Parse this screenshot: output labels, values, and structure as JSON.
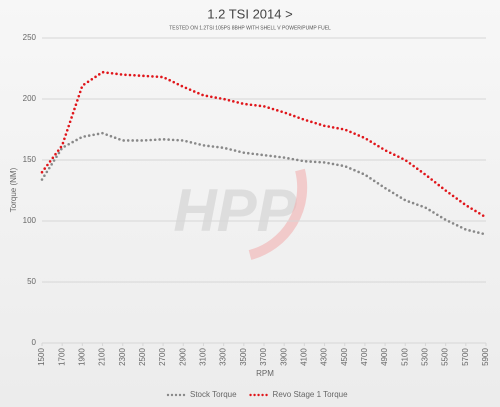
{
  "chart_data": {
    "type": "line",
    "title": "1.2 TSI 2014 >",
    "subtitle": "TESTED ON 1.2TSI 105PS 8BHP WITH SHELL V POWER/PUMP FUEL",
    "xlabel": "RPM",
    "ylabel": "Torque (NM)",
    "watermark": "HPP",
    "x": [
      1500,
      1700,
      1900,
      2100,
      2300,
      2500,
      2700,
      2900,
      3100,
      3300,
      3500,
      3700,
      3900,
      4100,
      4300,
      4500,
      4700,
      4900,
      5100,
      5300,
      5500,
      5700,
      5900
    ],
    "series": [
      {
        "name": "Stock Torque",
        "color": "#888888",
        "values": [
          134,
          160,
          169,
          172,
          166,
          166,
          167,
          166,
          162,
          160,
          156,
          154,
          152,
          149,
          148,
          145,
          138,
          127,
          117,
          111,
          101,
          93,
          89
        ]
      },
      {
        "name": "Revo Stage 1 Torque",
        "color": "#e0161b",
        "values": [
          140,
          162,
          211,
          222,
          220,
          219,
          218,
          210,
          203,
          200,
          196,
          194,
          189,
          183,
          178,
          175,
          168,
          158,
          150,
          138,
          125,
          113,
          103
        ]
      }
    ],
    "xlim": [
      1500,
      5900
    ],
    "xticks": [
      1500,
      1700,
      1900,
      2100,
      2300,
      2500,
      2700,
      2900,
      3100,
      3300,
      3500,
      3700,
      3900,
      4100,
      4300,
      4500,
      4700,
      4900,
      5100,
      5300,
      5500,
      5700,
      5900
    ],
    "ylim": [
      0,
      250
    ],
    "yticks": [
      0,
      50,
      100,
      150,
      200,
      250
    ],
    "grid": true,
    "legend": "bottom"
  }
}
